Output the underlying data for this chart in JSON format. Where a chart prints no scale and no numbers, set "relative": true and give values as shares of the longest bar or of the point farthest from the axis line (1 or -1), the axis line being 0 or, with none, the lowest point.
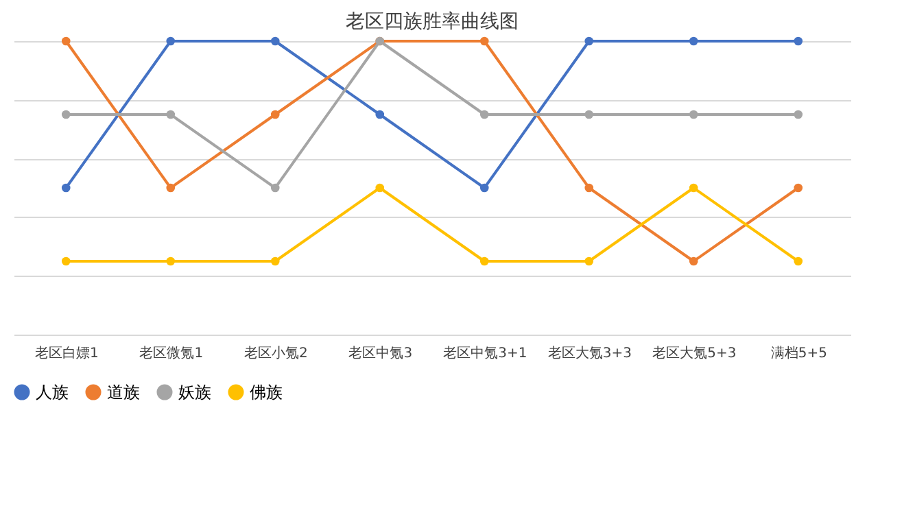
{
  "chart_data": {
    "type": "line",
    "title": "老区四族胜率曲线图",
    "relative": true,
    "grid": "y",
    "legend": "bottom",
    "marker": "circle",
    "categories": [
      "老区白嫖1",
      "老区微氪1",
      "老区小氪2",
      "老区中氪3",
      "老区中氪3+1",
      "老区大氪3+3",
      "老区大氪5+3",
      "满档5+5"
    ],
    "series": [
      {
        "name": "人族",
        "color": "#4472c4",
        "values": [
          0.5,
          1,
          1,
          0.75,
          0.5,
          1,
          1,
          1
        ]
      },
      {
        "name": "道族",
        "color": "#ed7d31",
        "values": [
          1,
          0.5,
          0.75,
          1,
          1,
          0.5,
          0.25,
          0.5
        ]
      },
      {
        "name": "妖族",
        "color": "#a5a5a5",
        "values": [
          0.75,
          0.75,
          0.5,
          1,
          0.75,
          0.75,
          0.75,
          0.75
        ]
      },
      {
        "name": "佛族",
        "color": "#ffc000",
        "values": [
          0.25,
          0.25,
          0.25,
          0.5,
          0.25,
          0.25,
          0.5,
          0.25
        ]
      }
    ]
  }
}
